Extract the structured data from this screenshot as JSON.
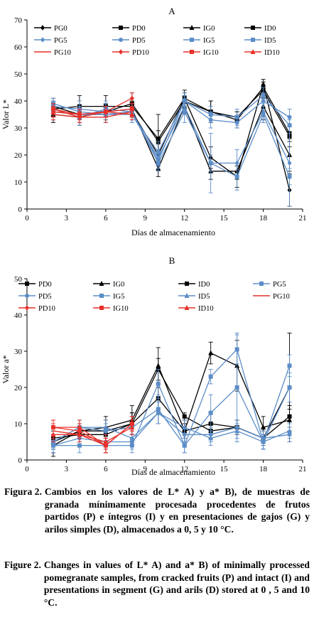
{
  "chart_data": [
    {
      "type": "line",
      "title": "A",
      "xlabel": "Días de almacenamiento",
      "ylabel": "Valor L*",
      "xlim": [
        0,
        21
      ],
      "ylim": [
        0,
        70
      ],
      "xticks": [
        "0",
        "3",
        "6",
        "9",
        "12",
        "15",
        "18",
        "21"
      ],
      "yticks": [
        "0",
        "10",
        "20",
        "30",
        "40",
        "50",
        "60",
        "70"
      ],
      "legend": "top, four columns",
      "grid": false,
      "series": [
        {
          "name": "PG0",
          "color": "#000000",
          "marker": "diamond",
          "x": [
            2,
            4,
            6,
            8,
            10,
            12,
            14,
            16,
            18,
            20
          ],
          "y": [
            36,
            35,
            35,
            36,
            20,
            41,
            19,
            12,
            46,
            7
          ],
          "err": [
            3,
            3,
            3,
            3,
            4,
            3,
            4,
            4,
            2,
            6
          ]
        },
        {
          "name": "PD0",
          "color": "#000000",
          "marker": "square",
          "x": [
            2,
            4,
            6,
            8,
            10,
            12,
            14,
            16,
            18,
            20
          ],
          "y": [
            37,
            38,
            38,
            38,
            26,
            41,
            36,
            33,
            45,
            28
          ],
          "err": [
            3,
            4,
            4,
            3,
            9,
            2,
            4,
            3,
            2,
            3
          ]
        },
        {
          "name": "IG0",
          "color": "#000000",
          "marker": "triangle",
          "x": [
            2,
            4,
            6,
            8,
            10,
            12,
            14,
            16,
            18,
            20
          ],
          "y": [
            35,
            34,
            36,
            37,
            15,
            38,
            14,
            14,
            38,
            20
          ],
          "err": [
            3,
            3,
            3,
            3,
            3,
            3,
            3,
            3,
            5,
            6
          ]
        },
        {
          "name": "ID0",
          "color": "#000000",
          "marker": "square",
          "x": [
            2,
            4,
            6,
            8,
            10,
            12,
            14,
            16,
            18,
            20
          ],
          "y": [
            38,
            35,
            36,
            39,
            25,
            40,
            36,
            34,
            44,
            27
          ],
          "err": [
            3,
            3,
            3,
            4,
            4,
            2,
            4,
            2,
            3,
            4
          ]
        },
        {
          "name": "PG5",
          "color": "#5b8dc8",
          "marker": "diamond",
          "x": [
            2,
            4,
            6,
            8,
            10,
            12,
            14,
            16,
            18,
            20
          ],
          "y": [
            36,
            35,
            35,
            35,
            19,
            38,
            17,
            17,
            36,
            17
          ],
          "err": [
            3,
            3,
            3,
            3,
            3,
            3,
            11,
            5,
            4,
            16
          ]
        },
        {
          "name": "PD5",
          "color": "#5b8dc8",
          "marker": "circle",
          "x": [
            2,
            4,
            6,
            8,
            10,
            12,
            14,
            16,
            18,
            20
          ],
          "y": [
            38,
            37,
            36,
            35,
            21,
            40,
            33,
            32,
            40,
            34
          ],
          "err": [
            2,
            3,
            3,
            3,
            4,
            3,
            3,
            2,
            3,
            3
          ]
        },
        {
          "name": "IG5",
          "color": "#5b8dc8",
          "marker": "square",
          "x": [
            2,
            4,
            6,
            8,
            10,
            12,
            14,
            16,
            18,
            20
          ],
          "y": [
            37,
            34,
            37,
            36,
            17,
            36,
            17,
            12,
            35,
            12
          ],
          "err": [
            2,
            3,
            3,
            3,
            3,
            4,
            3,
            5,
            3,
            3
          ]
        },
        {
          "name": "ID5",
          "color": "#5b8dc8",
          "marker": "square",
          "x": [
            2,
            4,
            6,
            8,
            10,
            12,
            14,
            16,
            18,
            20
          ],
          "y": [
            39,
            36,
            35,
            36,
            18,
            40,
            35,
            34,
            42,
            31
          ],
          "err": [
            2,
            2,
            3,
            3,
            3,
            2,
            3,
            3,
            3,
            3
          ]
        },
        {
          "name": "PG10",
          "color": "#e8312a",
          "marker": "none",
          "x": [
            2,
            4,
            6,
            8
          ],
          "y": [
            35,
            34,
            34,
            36
          ],
          "err": [
            2,
            2,
            2,
            2
          ]
        },
        {
          "name": "PD10",
          "color": "#e8312a",
          "marker": "diamond",
          "x": [
            2,
            4,
            6,
            8
          ],
          "y": [
            37,
            34,
            36,
            41
          ],
          "err": [
            2,
            2,
            2,
            2
          ]
        },
        {
          "name": "IG10",
          "color": "#e8312a",
          "marker": "square",
          "x": [
            2,
            4,
            6,
            8
          ],
          "y": [
            37,
            35,
            36,
            37
          ],
          "err": [
            2,
            2,
            2,
            2
          ]
        },
        {
          "name": "ID10",
          "color": "#e8312a",
          "marker": "triangle",
          "x": [
            2,
            4,
            6,
            8
          ],
          "y": [
            36,
            35,
            36,
            35
          ],
          "err": [
            2,
            2,
            2,
            2
          ]
        }
      ]
    },
    {
      "type": "line",
      "title": "B",
      "xlabel": "Días de almacenamiento",
      "ylabel": "Valor a*",
      "xlim": [
        0,
        21
      ],
      "ylim": [
        0,
        50
      ],
      "xticks": [
        "0",
        "3",
        "6",
        "9",
        "12",
        "15",
        "18",
        "21"
      ],
      "yticks": [
        "0",
        "10",
        "20",
        "30",
        "40",
        "50"
      ],
      "legend": "top, four columns",
      "grid": false,
      "series": [
        {
          "name": "PD0",
          "color": "#000000",
          "marker": "square",
          "x": [
            2,
            4,
            6,
            8,
            10,
            12,
            14,
            16,
            18,
            20
          ],
          "y": [
            4,
            8,
            8,
            10,
            25,
            12,
            8,
            9,
            6,
            12
          ],
          "err": [
            3,
            2,
            3,
            3,
            3,
            1,
            2,
            2,
            3,
            3
          ]
        },
        {
          "name": "IG0",
          "color": "#000000",
          "marker": "triangle",
          "x": [
            2,
            4,
            6,
            8,
            10,
            12,
            14,
            16,
            18,
            20
          ],
          "y": [
            5,
            8,
            9,
            11,
            26,
            8,
            29.5,
            26,
            9,
            11
          ],
          "err": [
            3,
            3,
            3,
            4,
            5,
            3,
            3,
            7,
            3,
            3
          ]
        },
        {
          "name": "ID0",
          "color": "#000000",
          "marker": "square",
          "x": [
            2,
            4,
            6,
            8,
            10,
            12,
            14,
            16,
            18,
            20
          ],
          "y": [
            6,
            7,
            7,
            10,
            17,
            8,
            10,
            9,
            6,
            20
          ],
          "err": [
            3,
            2,
            2,
            3,
            3,
            2,
            3,
            2,
            2,
            15
          ]
        },
        {
          "name": "PG5",
          "color": "#5b8dc8",
          "marker": "square",
          "x": [
            2,
            4,
            6,
            8,
            10,
            12,
            14,
            16,
            18,
            20
          ],
          "y": [
            5,
            9,
            8,
            9,
            14,
            4,
            23,
            30.5,
            5,
            26
          ],
          "err": [
            2,
            2,
            2,
            3,
            4,
            2,
            2,
            4,
            2,
            3
          ]
        },
        {
          "name": "PD5",
          "color": "#5b8dc8",
          "marker": "circle",
          "x": [
            2,
            4,
            6,
            8,
            10,
            12,
            14,
            16,
            18,
            20
          ],
          "y": [
            4,
            6,
            5,
            5,
            13,
            7,
            7,
            9,
            6,
            7
          ],
          "err": [
            2,
            2,
            2,
            2,
            3,
            2,
            2,
            2,
            2,
            2
          ]
        },
        {
          "name": "IG5",
          "color": "#5b8dc8",
          "marker": "square",
          "x": [
            2,
            4,
            6,
            8,
            10,
            12,
            14,
            16,
            18,
            20
          ],
          "y": [
            4,
            4,
            4,
            4,
            21,
            4,
            13,
            20,
            5,
            20
          ],
          "err": [
            2,
            2,
            2,
            2,
            4,
            2,
            5,
            15,
            2,
            4
          ]
        },
        {
          "name": "ID5",
          "color": "#5b8dc8",
          "marker": "triangle",
          "x": [
            2,
            4,
            6,
            8,
            10,
            12,
            14,
            16,
            18,
            20
          ],
          "y": [
            5,
            9,
            9,
            6,
            13,
            9,
            6,
            8,
            5,
            8
          ],
          "err": [
            2,
            2,
            2,
            2,
            3,
            2,
            2,
            2,
            2,
            2
          ]
        },
        {
          "name": "PG10",
          "color": "#e8312a",
          "marker": "none",
          "x": [
            2,
            4,
            6,
            8
          ],
          "y": [
            8,
            7,
            4,
            10
          ],
          "err": [
            2,
            2,
            2,
            2
          ]
        },
        {
          "name": "PD10",
          "color": "#e8312a",
          "marker": "diamond",
          "x": [
            2,
            4,
            6,
            8
          ],
          "y": [
            9,
            9,
            4,
            10
          ],
          "err": [
            2,
            2,
            2,
            2
          ]
        },
        {
          "name": "IG10",
          "color": "#e8312a",
          "marker": "square",
          "x": [
            2,
            4,
            6,
            8
          ],
          "y": [
            9,
            8,
            4,
            10
          ],
          "err": [
            2,
            2,
            2,
            2
          ]
        },
        {
          "name": "ID10",
          "color": "#e8312a",
          "marker": "triangle",
          "x": [
            2,
            4,
            6,
            8
          ],
          "y": [
            7,
            7,
            5,
            9
          ],
          "err": [
            2,
            2,
            2,
            2
          ]
        }
      ]
    }
  ],
  "caption": {
    "es_label": "Figura 2.",
    "es_text": "Cambios en los valores de L* A) y a* B), de muestras de granada mínimamente procesada procedentes de frutos partidos (P) e íntegros (I) y en presentaciones de gajos (G) y arilos simples (D), almacenados a 0, 5 y 10 °C.",
    "en_label": "Figure 2.",
    "en_text": "Changes in values of L* A) and a* B) of minimally processed pomegranate samples, from cracked fruits (P) and intact (I) and presentations in segment (G) and arils (D) stored at 0 , 5 and 10 °C."
  }
}
